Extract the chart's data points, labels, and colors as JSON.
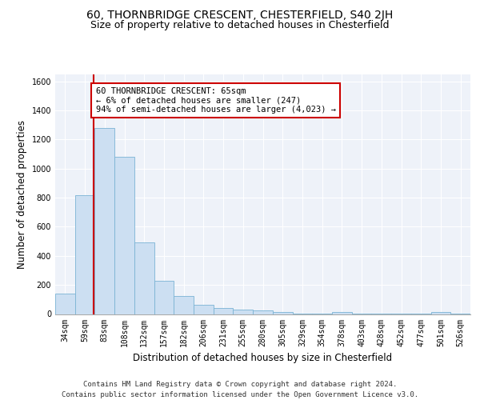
{
  "title_line1": "60, THORNBRIDGE CRESCENT, CHESTERFIELD, S40 2JH",
  "title_line2": "Size of property relative to detached houses in Chesterfield",
  "xlabel": "Distribution of detached houses by size in Chesterfield",
  "ylabel": "Number of detached properties",
  "footer_line1": "Contains HM Land Registry data © Crown copyright and database right 2024.",
  "footer_line2": "Contains public sector information licensed under the Open Government Licence v3.0.",
  "bar_labels": [
    "34sqm",
    "59sqm",
    "83sqm",
    "108sqm",
    "132sqm",
    "157sqm",
    "182sqm",
    "206sqm",
    "231sqm",
    "255sqm",
    "280sqm",
    "305sqm",
    "329sqm",
    "354sqm",
    "378sqm",
    "403sqm",
    "428sqm",
    "452sqm",
    "477sqm",
    "501sqm",
    "526sqm"
  ],
  "bar_values": [
    140,
    815,
    1280,
    1080,
    495,
    230,
    125,
    65,
    40,
    28,
    25,
    15,
    5,
    5,
    15,
    5,
    3,
    3,
    3,
    15,
    3
  ],
  "bar_color": "#ccdff2",
  "bar_edgecolor": "#7ab3d4",
  "property_line_x": 1.45,
  "annotation_text": "60 THORNBRIDGE CRESCENT: 65sqm\n← 6% of detached houses are smaller (247)\n94% of semi-detached houses are larger (4,023) →",
  "annotation_box_color": "#ffffff",
  "annotation_border_color": "#cc0000",
  "vline_color": "#cc0000",
  "ylim": [
    0,
    1650
  ],
  "yticks": [
    0,
    200,
    400,
    600,
    800,
    1000,
    1200,
    1400,
    1600
  ],
  "background_color": "#eef2f9",
  "grid_color": "#ffffff",
  "title1_fontsize": 10,
  "title2_fontsize": 9,
  "xlabel_fontsize": 8.5,
  "ylabel_fontsize": 8.5,
  "tick_fontsize": 7,
  "footer_fontsize": 6.5,
  "annotation_fontsize": 7.5
}
